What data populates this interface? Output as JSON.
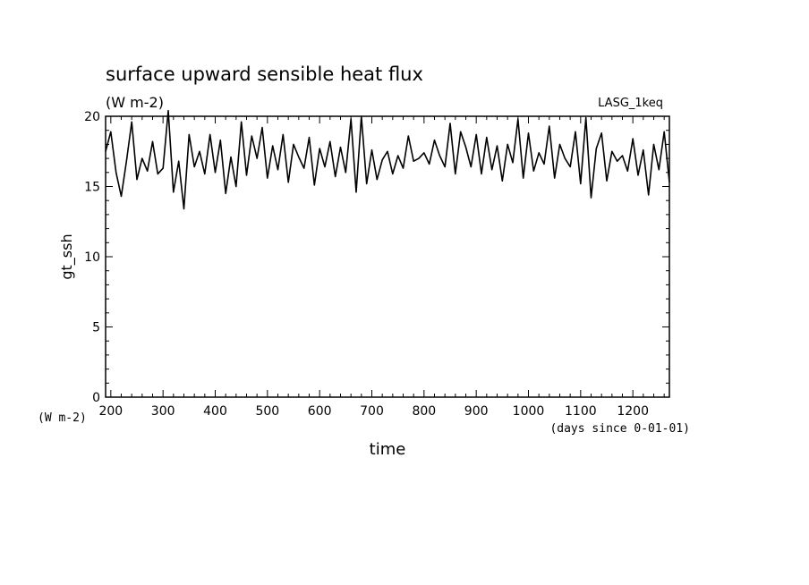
{
  "chart_data": {
    "type": "line",
    "title": "surface upward sensible heat flux",
    "subtitle": "(W m-2)",
    "run_label": "LASG_1keq",
    "xlabel": "time",
    "x_unit": "(days since 0-01-01)",
    "ylabel": "gt_ssh",
    "y_unit": "(W m-2)",
    "xlim": [
      190,
      1270
    ],
    "ylim": [
      0,
      20
    ],
    "x_major_ticks": [
      200,
      300,
      400,
      500,
      600,
      700,
      800,
      900,
      1000,
      1100,
      1200
    ],
    "y_major_ticks": [
      0,
      5,
      10,
      15,
      20
    ],
    "grid": false,
    "legend": "none",
    "colors": {
      "line": "#000000",
      "axes": "#000000",
      "background": "#ffffff"
    },
    "series": [
      {
        "x": [
          190,
          200,
          210,
          220,
          230,
          240,
          250,
          260,
          270,
          280,
          290,
          300,
          310,
          320,
          330,
          340,
          350,
          360,
          370,
          380,
          390,
          400,
          410,
          420,
          430,
          440,
          450,
          460,
          470,
          480,
          490,
          500,
          510,
          520,
          530,
          540,
          550,
          560,
          570,
          580,
          590,
          600,
          610,
          620,
          630,
          640,
          650,
          660,
          670,
          680,
          690,
          700,
          710,
          720,
          730,
          740,
          750,
          760,
          770,
          780,
          790,
          800,
          810,
          820,
          830,
          840,
          850,
          860,
          870,
          880,
          890,
          900,
          910,
          920,
          930,
          940,
          950,
          960,
          970,
          980,
          990,
          1000,
          1010,
          1020,
          1030,
          1040,
          1050,
          1060,
          1070,
          1080,
          1090,
          1100,
          1110,
          1120,
          1130,
          1140,
          1150,
          1160,
          1170,
          1180,
          1190,
          1200,
          1210,
          1220,
          1230,
          1240,
          1250,
          1260,
          1270
        ],
        "values": [
          17.5,
          18.9,
          16.0,
          14.3,
          16.8,
          19.6,
          15.5,
          17.0,
          16.1,
          18.2,
          15.9,
          16.3,
          20.4,
          14.6,
          16.8,
          13.4,
          18.7,
          16.4,
          17.5,
          15.9,
          18.7,
          16.0,
          18.3,
          14.5,
          17.1,
          15.0,
          19.6,
          15.8,
          18.6,
          17.0,
          19.2,
          15.6,
          17.9,
          16.2,
          18.7,
          15.3,
          18.0,
          17.1,
          16.3,
          18.5,
          15.1,
          17.7,
          16.4,
          18.2,
          15.7,
          17.8,
          16.0,
          19.8,
          14.6,
          20.0,
          15.2,
          17.6,
          15.5,
          16.9,
          17.5,
          15.9,
          17.2,
          16.3,
          18.6,
          16.8,
          17.0,
          17.4,
          16.6,
          18.3,
          17.2,
          16.4,
          19.5,
          15.9,
          18.9,
          17.8,
          16.4,
          18.7,
          15.9,
          18.5,
          16.2,
          17.9,
          15.4,
          18.0,
          16.7,
          19.8,
          15.6,
          18.8,
          16.1,
          17.4,
          16.6,
          19.3,
          15.6,
          18.0,
          17.0,
          16.4,
          18.9,
          15.2,
          19.9,
          14.2,
          17.7,
          18.8,
          15.4,
          17.5,
          16.8,
          17.2,
          16.1,
          18.4,
          15.8,
          17.6,
          14.4,
          18.0,
          16.2,
          18.9,
          15.3
        ]
      }
    ]
  }
}
